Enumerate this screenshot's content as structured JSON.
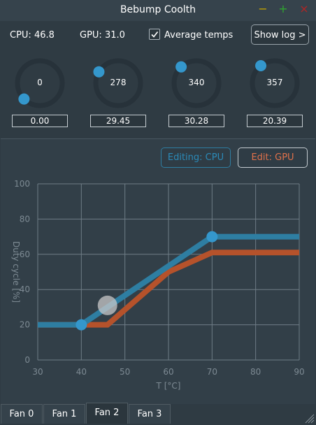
{
  "window": {
    "title": "Bebump Coolth",
    "minimize": "−",
    "maximize": "+",
    "close": "×"
  },
  "stats": {
    "cpu": "CPU: 46.8",
    "gpu": "GPU: 31.0"
  },
  "average_temps": {
    "label": "Average temps",
    "checked": true
  },
  "show_log": {
    "label": "Show log >"
  },
  "fans": [
    {
      "dial": "0",
      "field": "0.00",
      "level": 0.0
    },
    {
      "dial": "278",
      "field": "29.45",
      "level": 0.28
    },
    {
      "dial": "340",
      "field": "30.28",
      "level": 0.34
    },
    {
      "dial": "357",
      "field": "20.39",
      "level": 0.357
    }
  ],
  "editing": {
    "cpu_label": "Editing: CPU",
    "gpu_label": "Edit: GPU"
  },
  "chart_data": {
    "type": "line",
    "xlabel": "T [°C]",
    "ylabel": "Duty cycle [%]",
    "xlim": [
      30,
      90
    ],
    "ylim": [
      0,
      100
    ],
    "xticks": [
      30,
      40,
      50,
      60,
      70,
      80,
      90
    ],
    "yticks": [
      0,
      20,
      40,
      60,
      80,
      100
    ],
    "grid": true,
    "series": [
      {
        "color": "#b5522b",
        "x": [
          30,
          40,
          46,
          60,
          70,
          90
        ],
        "y": [
          20,
          20,
          20,
          50,
          61,
          61
        ]
      },
      {
        "color": "#2e7ea2",
        "x": [
          30,
          40,
          70,
          90
        ],
        "y": [
          20,
          20,
          70,
          70
        ]
      }
    ],
    "control_points": [
      {
        "x": 40,
        "y": 20
      },
      {
        "x": 70,
        "y": 70
      }
    ],
    "cursor": {
      "x": 46,
      "y": 31
    }
  },
  "tabs": [
    "Fan 0",
    "Fan 1",
    "Fan 2",
    "Fan 3"
  ],
  "active_tab": 2,
  "colors": {
    "cpu": "#2e7ea2",
    "gpu": "#b5522b",
    "accent": "#3497cc",
    "background": "#2f3b43"
  },
  "icons": {
    "check": "check-icon",
    "grip": "resize-grip-icon"
  }
}
